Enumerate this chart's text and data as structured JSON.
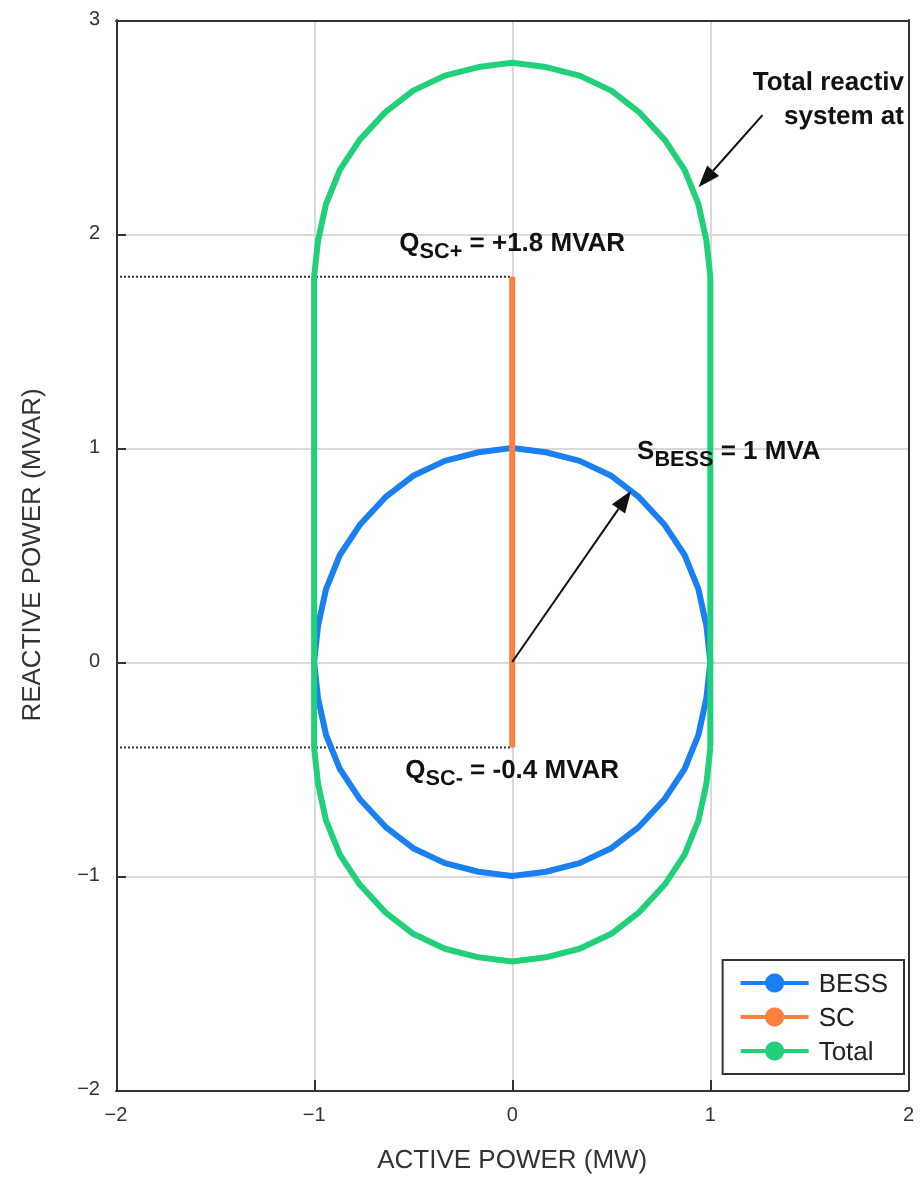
{
  "chart_data": {
    "type": "line",
    "xlabel": "ACTIVE POWER (MW)",
    "ylabel": "REACTIVE POWER (MVAR)",
    "xlim": [
      -2,
      2
    ],
    "xticks": [
      {
        "value": -2,
        "label": "−2"
      },
      {
        "value": -1,
        "label": "−1"
      },
      0,
      1,
      2
    ],
    "ylim": [
      -2,
      3
    ],
    "yticks": [
      {
        "value": -2,
        "label": "−2"
      },
      {
        "value": -1,
        "label": "−1"
      },
      0,
      1,
      2,
      3
    ],
    "grid": true,
    "legend": "bottom right",
    "marker": "none",
    "line_style": "solid",
    "series": [
      {
        "name": "BESS",
        "color": "#1a7ff0",
        "x": [
          -1,
          -0.98,
          -0.94,
          -0.87,
          -0.77,
          -0.64,
          -0.5,
          -0.34,
          -0.17,
          0,
          0.17,
          0.34,
          0.5,
          0.64,
          0.77,
          0.87,
          0.94,
          0.98,
          1,
          null,
          -1,
          -0.98,
          -0.94,
          -0.87,
          -0.77,
          -0.64,
          -0.5,
          -0.34,
          -0.17,
          0,
          0.17,
          0.34,
          0.5,
          0.64,
          0.77,
          0.87,
          0.94,
          0.98,
          1
        ],
        "values": [
          0,
          0.17,
          0.34,
          0.5,
          0.64,
          0.77,
          0.87,
          0.94,
          0.98,
          1,
          0.98,
          0.94,
          0.87,
          0.77,
          0.64,
          0.5,
          0.34,
          0.17,
          0,
          null,
          0,
          -0.17,
          -0.34,
          -0.5,
          -0.64,
          -0.77,
          -0.87,
          -0.94,
          -0.98,
          -1,
          -0.98,
          -0.94,
          -0.87,
          -0.77,
          -0.64,
          -0.5,
          -0.34,
          -0.17,
          0
        ]
      },
      {
        "name": "SC",
        "color": "#ff7f3f",
        "x": [
          0,
          0
        ],
        "values": [
          -0.4,
          1.8
        ]
      },
      {
        "name": "Total",
        "color": "#22d07a",
        "x": [
          -1,
          -0.98,
          -0.94,
          -0.87,
          -0.77,
          -0.64,
          -0.5,
          -0.34,
          -0.17,
          0,
          0.17,
          0.34,
          0.5,
          0.64,
          0.77,
          0.87,
          0.94,
          0.98,
          1,
          null,
          1,
          1,
          null,
          -1,
          -0.98,
          -0.94,
          -0.87,
          -0.77,
          -0.64,
          -0.5,
          -0.34,
          -0.17,
          0,
          0.17,
          0.34,
          0.5,
          0.64,
          0.77,
          0.87,
          0.94,
          0.98,
          1,
          null,
          -1,
          -1
        ],
        "values": [
          1.8,
          1.97,
          2.14,
          2.3,
          2.44,
          2.57,
          2.67,
          2.74,
          2.78,
          2.8,
          2.78,
          2.74,
          2.67,
          2.57,
          2.44,
          2.3,
          2.14,
          1.97,
          1.8,
          null,
          1.8,
          -0.4,
          null,
          -0.4,
          -0.57,
          -0.74,
          -0.9,
          -1.04,
          -1.17,
          -1.27,
          -1.34,
          -1.38,
          -1.4,
          -1.38,
          -1.34,
          -1.27,
          -1.17,
          -1.04,
          -0.9,
          -0.74,
          -0.57,
          -0.4,
          null,
          -0.4,
          1.8
        ]
      },
      {
        "color": "#333333",
        "line_style": "dotted",
        "x": [
          -2,
          0
        ],
        "values": [
          1.8,
          1.8
        ]
      },
      {
        "color": "#333333",
        "line_style": "dotted",
        "x": [
          -2,
          0
        ],
        "values": [
          -0.4,
          -0.4
        ]
      }
    ],
    "annotations": [
      "Q$_{SC+}$ = +1.8 MVAR",
      "Q$_{SC-}$ = -0.4 MVAR",
      {
        "text": "S$_{BESS}$ = 1 MVA",
        "x": 0.6,
        "y": 0.8
      },
      "Total reactiv\nsystem at"
    ]
  }
}
